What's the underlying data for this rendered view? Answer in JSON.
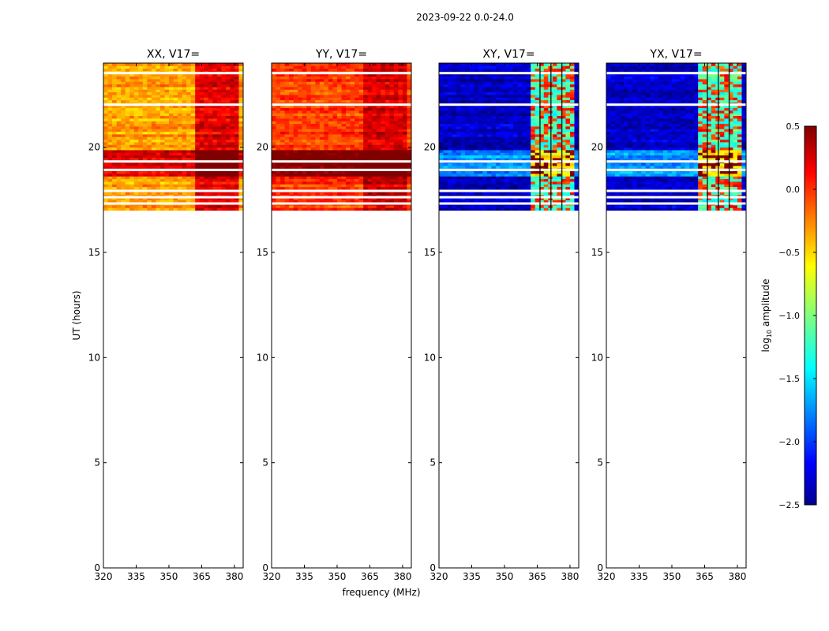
{
  "chart_data": {
    "type": "heatmap",
    "suptitle": "2023-09-22 0.0-24.0",
    "xlabel": "frequency (MHz)",
    "ylabel": "UT (hours)",
    "xlim": [
      320,
      384
    ],
    "ylim": [
      0,
      24
    ],
    "xticks": [
      320,
      335,
      350,
      365,
      380
    ],
    "yticks": [
      0,
      5,
      10,
      15,
      20
    ],
    "data_time_range": [
      17.0,
      24.0
    ],
    "hot_band_mhz": [
      362,
      381
    ],
    "panels": [
      {
        "title": "XX, V17=",
        "base_log_amp": -0.35,
        "hot_log_amp": 0.2
      },
      {
        "title": "YY, V17=",
        "base_log_amp": -0.05,
        "hot_log_amp": 0.25
      },
      {
        "title": "XY, V17=",
        "base_log_amp": -2.3,
        "hot_log_amp": -1.2
      },
      {
        "title": "YX, V17=",
        "base_log_amp": -2.3,
        "hot_log_amp": -1.2
      }
    ],
    "colorbar": {
      "label": "log10 amplitude",
      "label_main": "log",
      "label_sub": "10",
      "label_rest": " amplitude",
      "min": -2.5,
      "max": 0.5,
      "ticks": [
        "0.5",
        "0.0",
        "−0.5",
        "−1.0",
        "−1.5",
        "−2.0",
        "−2.5"
      ],
      "tick_values": [
        0.5,
        0.0,
        -0.5,
        -1.0,
        -1.5,
        -2.0,
        -2.5
      ],
      "colormap": "jet"
    }
  }
}
